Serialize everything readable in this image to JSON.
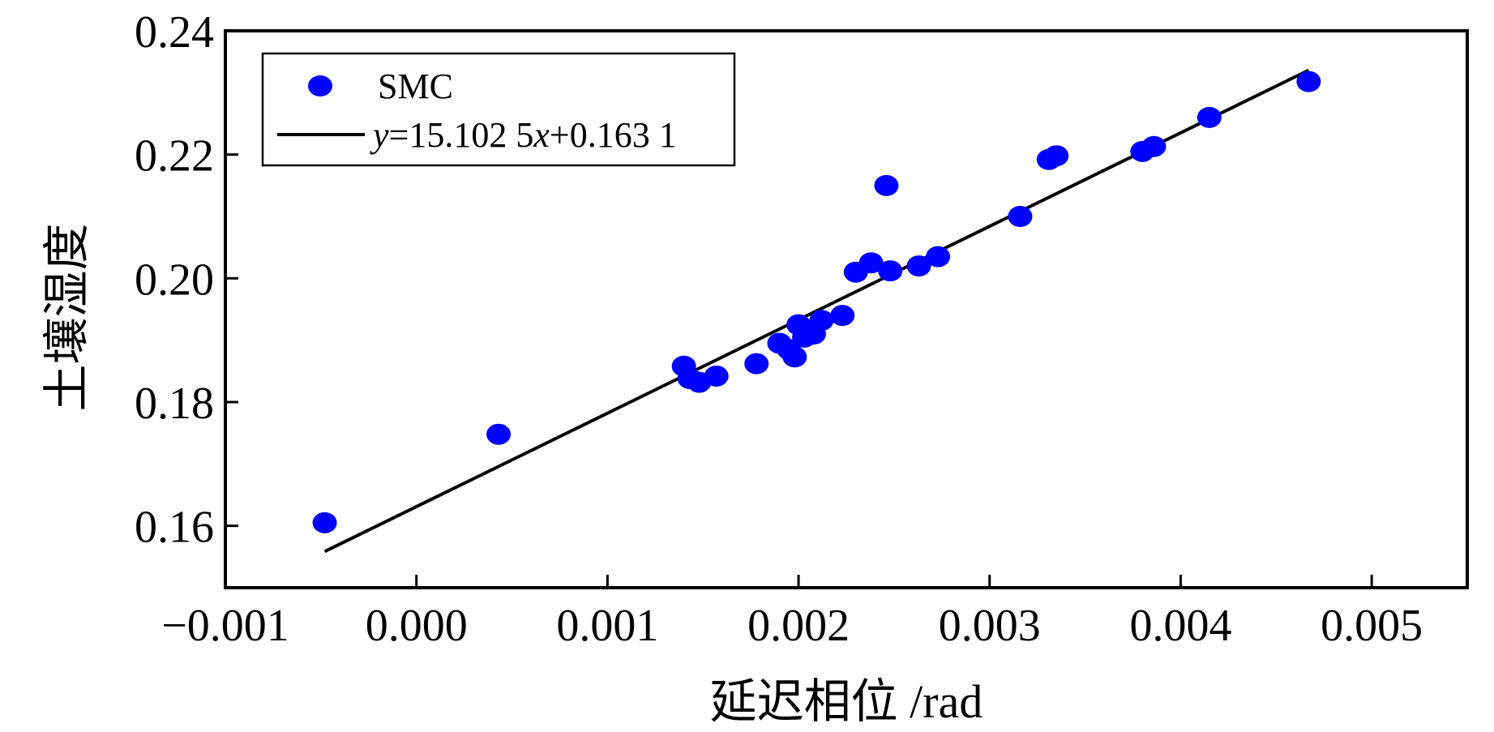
{
  "chart_data": {
    "type": "scatter",
    "xlabel": "延迟相位 /rad",
    "ylabel": "土壤湿度",
    "xlim": [
      -0.001,
      0.0055
    ],
    "ylim": [
      0.15,
      0.24
    ],
    "x_ticks": [
      {
        "value": -0.001,
        "label": "−0.001"
      },
      {
        "value": 0.0,
        "label": "0.000"
      },
      {
        "value": 0.001,
        "label": "0.001"
      },
      {
        "value": 0.002,
        "label": "0.002"
      },
      {
        "value": 0.003,
        "label": "0.003"
      },
      {
        "value": 0.004,
        "label": "0.004"
      },
      {
        "value": 0.005,
        "label": "0.005"
      }
    ],
    "y_ticks": [
      {
        "value": 0.16,
        "label": "0.16"
      },
      {
        "value": 0.18,
        "label": "0.18"
      },
      {
        "value": 0.2,
        "label": "0.20"
      },
      {
        "value": 0.22,
        "label": "0.22"
      },
      {
        "value": 0.24,
        "label": "0.24"
      }
    ],
    "grid": false,
    "legend": {
      "position": "top-left",
      "entries": [
        {
          "label_parts": [
            "SMC"
          ],
          "marker": "circle"
        },
        {
          "label_parts": [
            "y",
            "=15.102 5",
            "x",
            "+0.163 1"
          ],
          "marker": "line"
        }
      ]
    },
    "series": [
      {
        "name": "SMC",
        "kind": "scatter",
        "color": "#0000ff",
        "points": [
          [
            -0.00048,
            0.1605
          ],
          [
            0.00043,
            0.1748
          ],
          [
            0.0014,
            0.1858
          ],
          [
            0.00143,
            0.1838
          ],
          [
            0.00148,
            0.1832
          ],
          [
            0.00157,
            0.1842
          ],
          [
            0.00178,
            0.1862
          ],
          [
            0.0019,
            0.1895
          ],
          [
            0.00195,
            0.1885
          ],
          [
            0.00198,
            0.1873
          ],
          [
            0.002,
            0.1925
          ],
          [
            0.00203,
            0.1905
          ],
          [
            0.00208,
            0.191
          ],
          [
            0.00212,
            0.1932
          ],
          [
            0.00223,
            0.194
          ],
          [
            0.0023,
            0.201
          ],
          [
            0.00238,
            0.2025
          ],
          [
            0.00246,
            0.215
          ],
          [
            0.00248,
            0.2012
          ],
          [
            0.00263,
            0.202
          ],
          [
            0.00273,
            0.2035
          ],
          [
            0.00316,
            0.21
          ],
          [
            0.00331,
            0.2192
          ],
          [
            0.00335,
            0.2198
          ],
          [
            0.0038,
            0.2205
          ],
          [
            0.00386,
            0.2213
          ],
          [
            0.00415,
            0.226
          ],
          [
            0.00467,
            0.2318
          ]
        ]
      },
      {
        "name": "fit",
        "kind": "line",
        "color": "#000000",
        "slope": 15.1025,
        "intercept": 0.1631,
        "x_range": [
          -0.00048,
          0.00467
        ]
      }
    ]
  }
}
